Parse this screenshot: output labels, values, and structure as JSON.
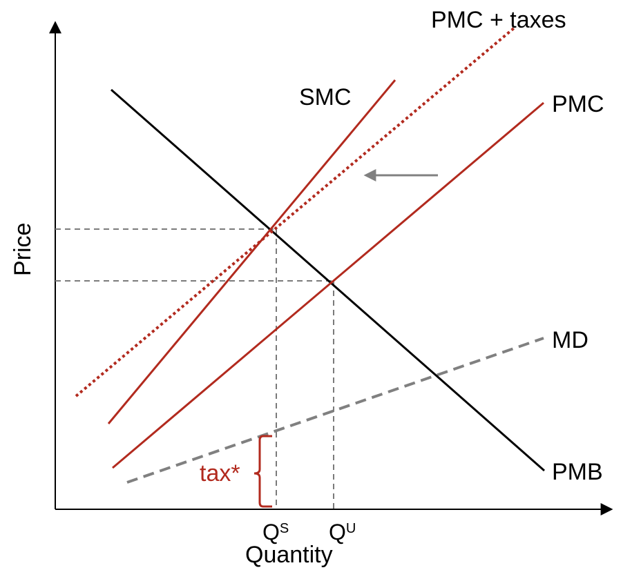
{
  "colors": {
    "curve_black": "#000000",
    "curve_red": "#b22a1e",
    "md_gray": "#808080",
    "guide_gray": "#7a7a7a"
  },
  "axes": {
    "y_label": "Price",
    "x_label": "Quantity"
  },
  "curves": {
    "pmc_taxes": "PMC + taxes",
    "smc": "SMC",
    "pmc": "PMC",
    "md": "MD",
    "pmb": "PMB"
  },
  "quantities": {
    "qs_base": "Q",
    "qs_sup": "S",
    "qu_base": "Q",
    "qu_sup": "U"
  },
  "tax_label": "tax*"
}
